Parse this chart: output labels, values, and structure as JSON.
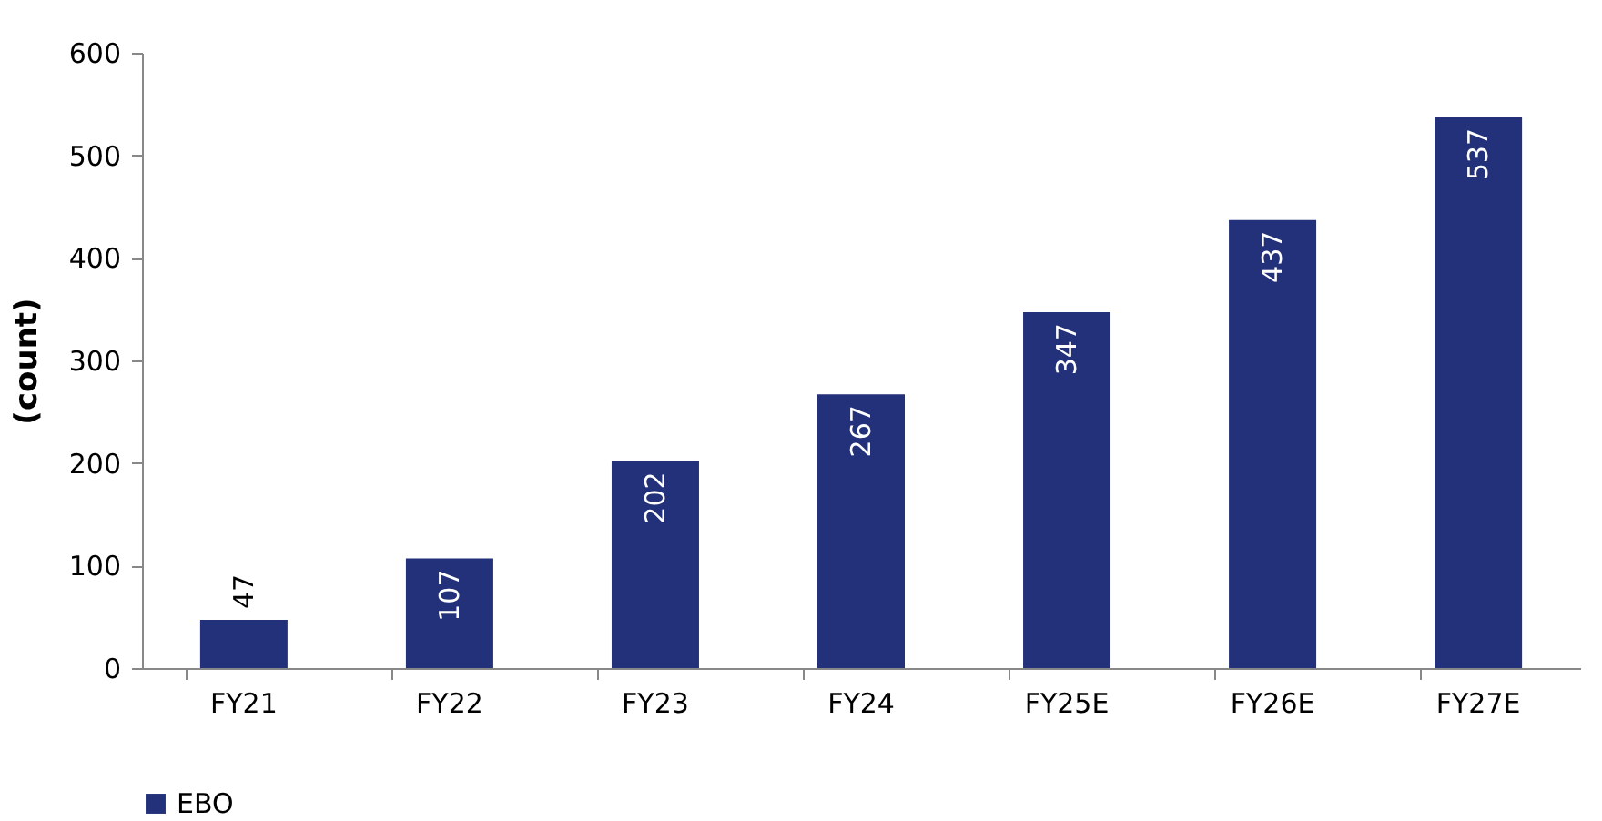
{
  "chart_data": {
    "type": "bar",
    "ylabel": "(count)",
    "categories": [
      "FY21",
      "FY22",
      "FY23",
      "FY24",
      "FY25E",
      "FY26E",
      "FY27E"
    ],
    "series": [
      {
        "name": "EBO",
        "color": "#22317a",
        "values": [
          47,
          107,
          202,
          267,
          347,
          437,
          537
        ]
      }
    ],
    "ylim": [
      0,
      600
    ],
    "yticks": [
      0,
      100,
      200,
      300,
      400,
      500,
      600
    ],
    "grid": false,
    "legend": "bottom",
    "data_labels": true
  }
}
